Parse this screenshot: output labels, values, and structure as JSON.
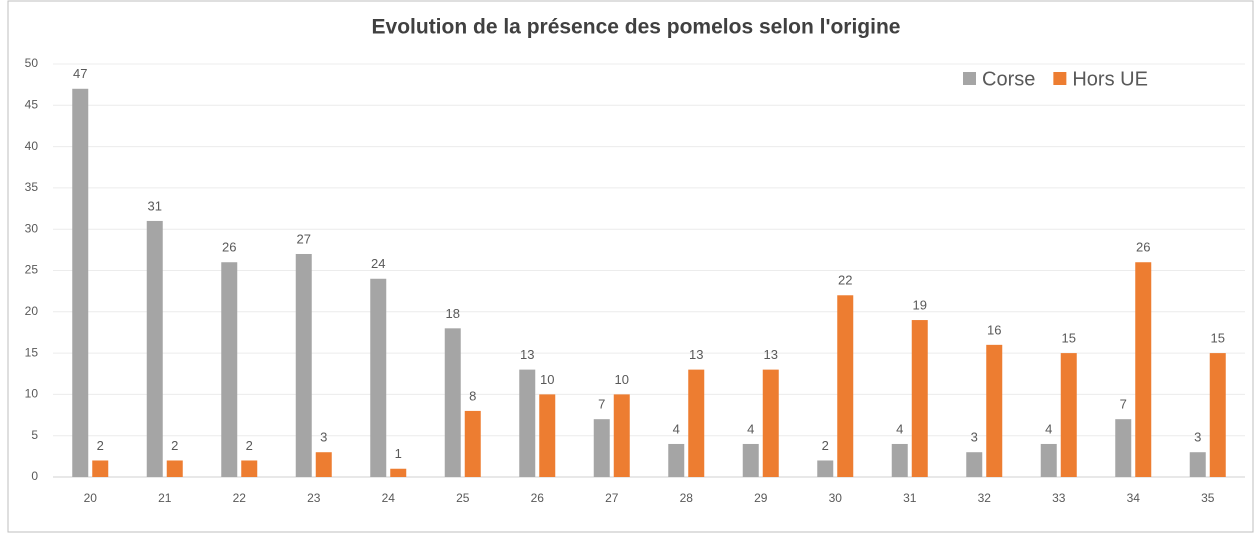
{
  "chart_data": {
    "type": "bar",
    "title": "Evolution de la présence des pomelos selon l'origine",
    "categories": [
      "20",
      "21",
      "22",
      "23",
      "24",
      "25",
      "26",
      "27",
      "28",
      "29",
      "30",
      "31",
      "32",
      "33",
      "34",
      "35"
    ],
    "series": [
      {
        "name": "Corse",
        "color": "#a5a5a5",
        "values": [
          47,
          31,
          26,
          27,
          24,
          18,
          13,
          7,
          4,
          4,
          2,
          4,
          3,
          4,
          7,
          3
        ]
      },
      {
        "name": "Hors UE",
        "color": "#ed7d31",
        "values": [
          2,
          2,
          2,
          3,
          1,
          8,
          10,
          10,
          13,
          13,
          22,
          19,
          16,
          15,
          26,
          15
        ]
      }
    ],
    "ylim": [
      0,
      50
    ],
    "yticks": [
      0,
      5,
      10,
      15,
      20,
      25,
      30,
      35,
      40,
      45,
      50
    ],
    "grid": true,
    "legend": "top-right"
  }
}
